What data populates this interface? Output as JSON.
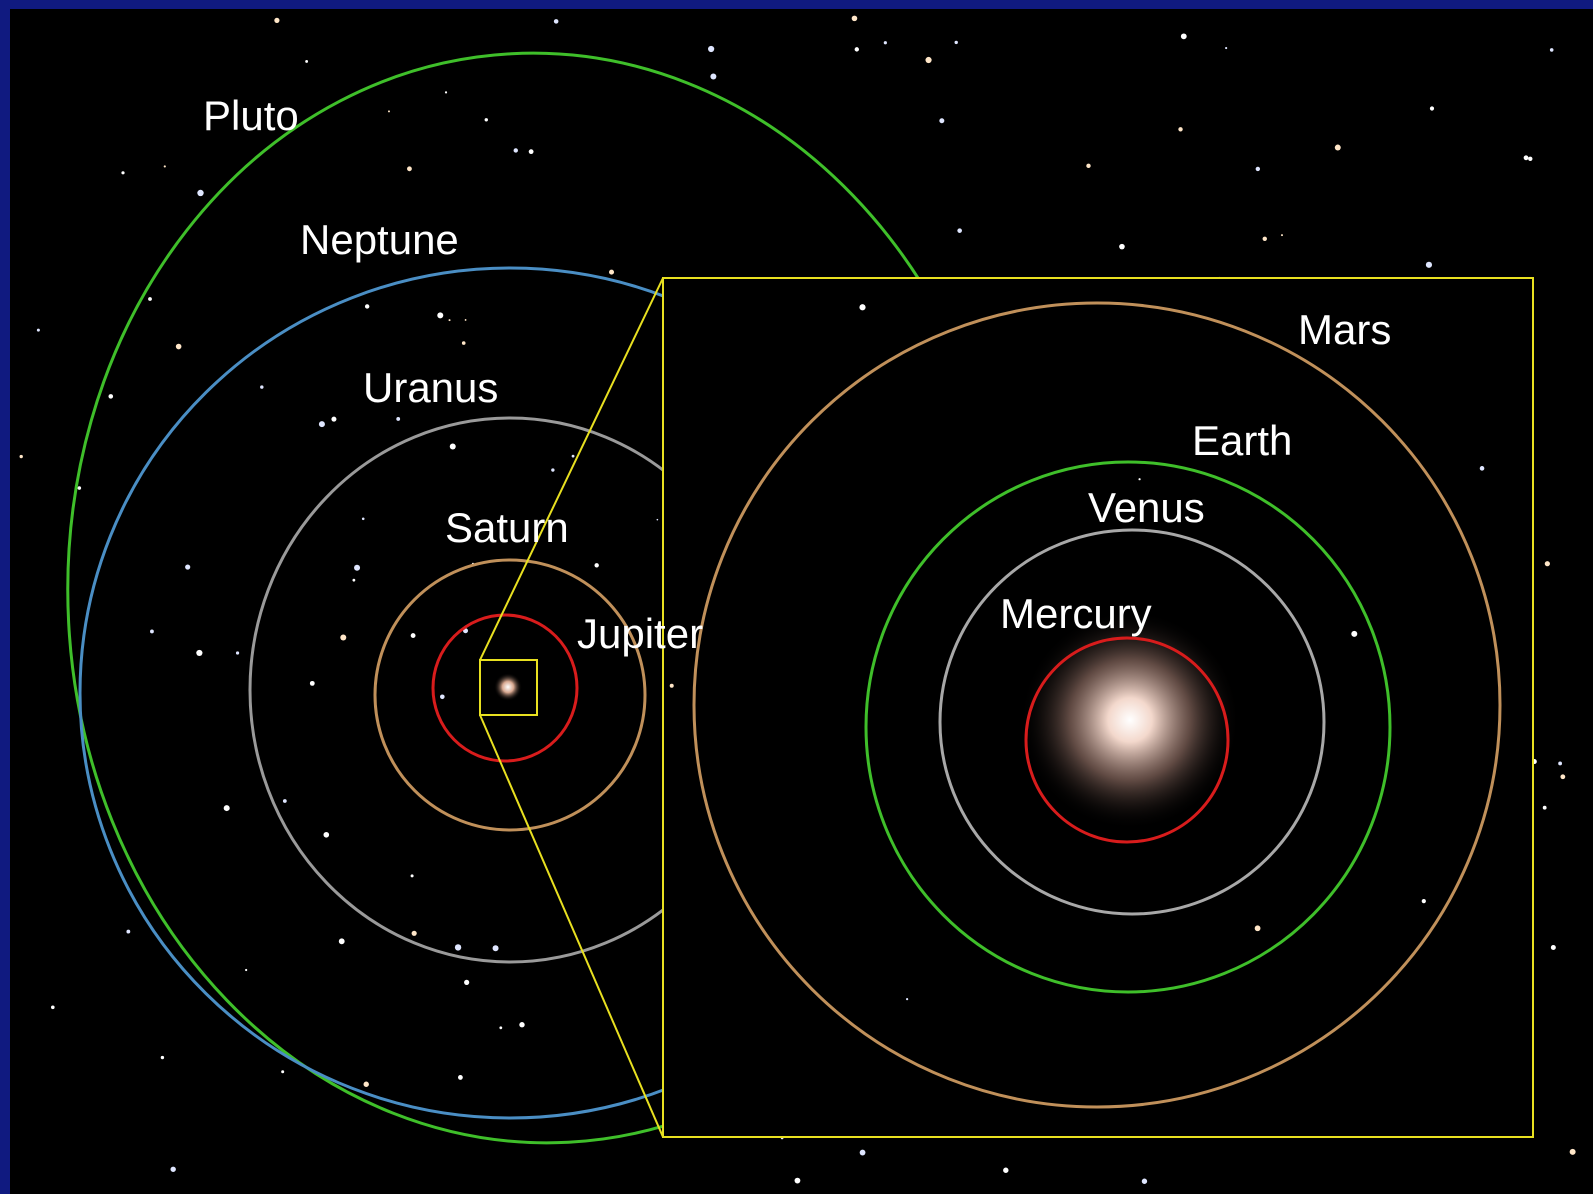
{
  "outer_planets": [
    "Pluto",
    "Neptune",
    "Uranus",
    "Saturn",
    "Jupiter"
  ],
  "inner_planets": [
    "Mars",
    "Earth",
    "Venus",
    "Mercury"
  ]
}
